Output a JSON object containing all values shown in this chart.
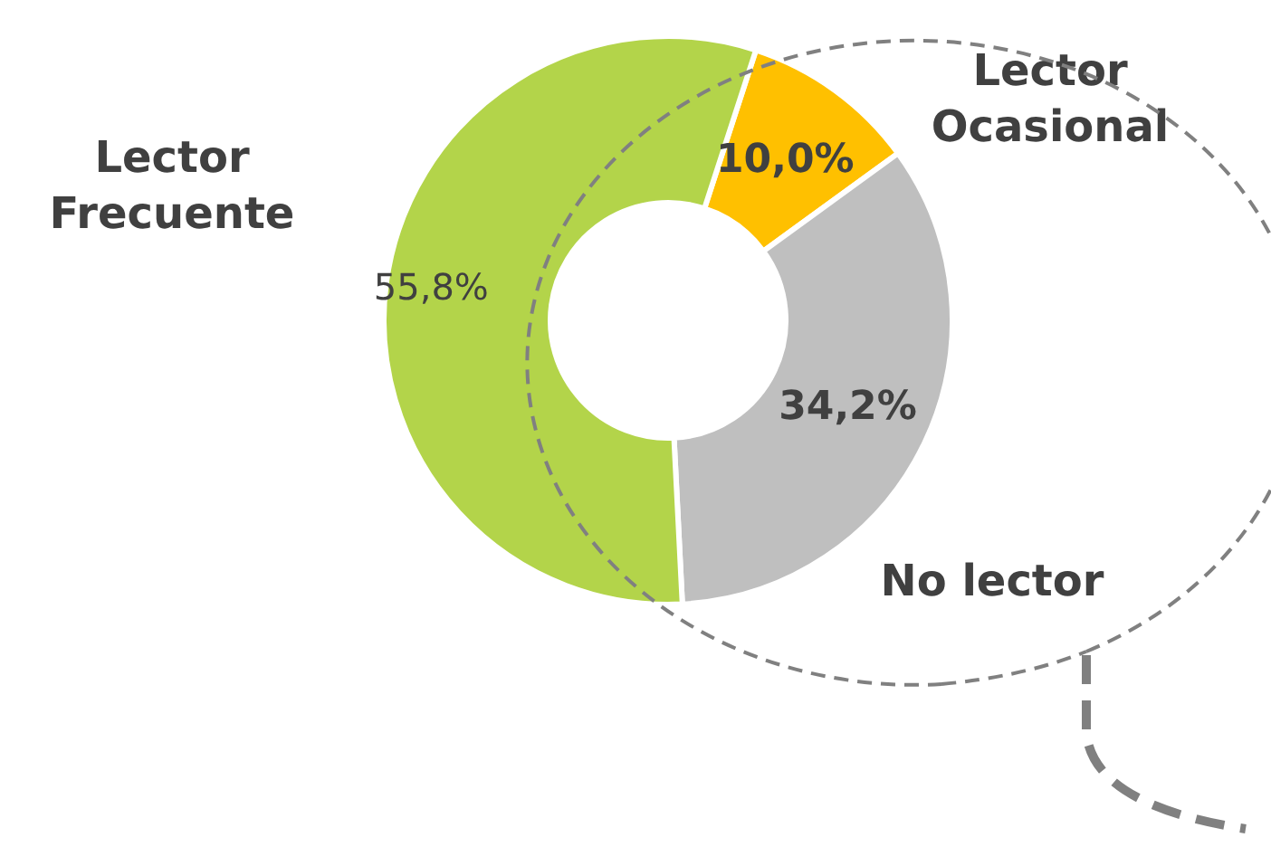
{
  "chart_data": {
    "type": "donut",
    "categories": [
      "Lector Ocasional",
      "No lector",
      "Lector Frecuente"
    ],
    "values": [
      10.0,
      34.2,
      55.8
    ],
    "colors": [
      "#ffc000",
      "#bfbfbf",
      "#b3d44a"
    ],
    "value_labels": [
      "10,0%",
      "34,2%",
      "55,8%"
    ]
  }
}
